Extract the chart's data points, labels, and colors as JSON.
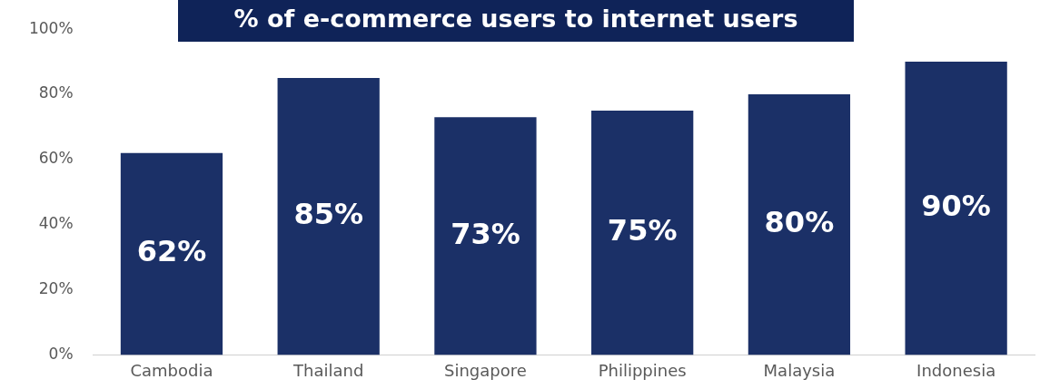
{
  "chart_data": {
    "type": "bar",
    "title": "% of e-commerce users to internet users",
    "categories": [
      "Cambodia",
      "Thailand",
      "Singapore",
      "Philippines",
      "Malaysia",
      "Indonesia"
    ],
    "values": [
      62,
      85,
      73,
      75,
      80,
      90
    ],
    "value_labels": [
      "62%",
      "85%",
      "73%",
      "75%",
      "80%",
      "90%"
    ],
    "color": "#1b3067",
    "ylim": [
      0,
      100
    ],
    "yticks": [
      {
        "value": 0,
        "label": "0%"
      },
      {
        "value": 20,
        "label": "20%"
      },
      {
        "value": 40,
        "label": "40%"
      },
      {
        "value": 60,
        "label": "60%"
      },
      {
        "value": 80,
        "label": "80%"
      },
      {
        "value": 100,
        "label": "100%"
      }
    ],
    "grid": false,
    "legend": false
  }
}
